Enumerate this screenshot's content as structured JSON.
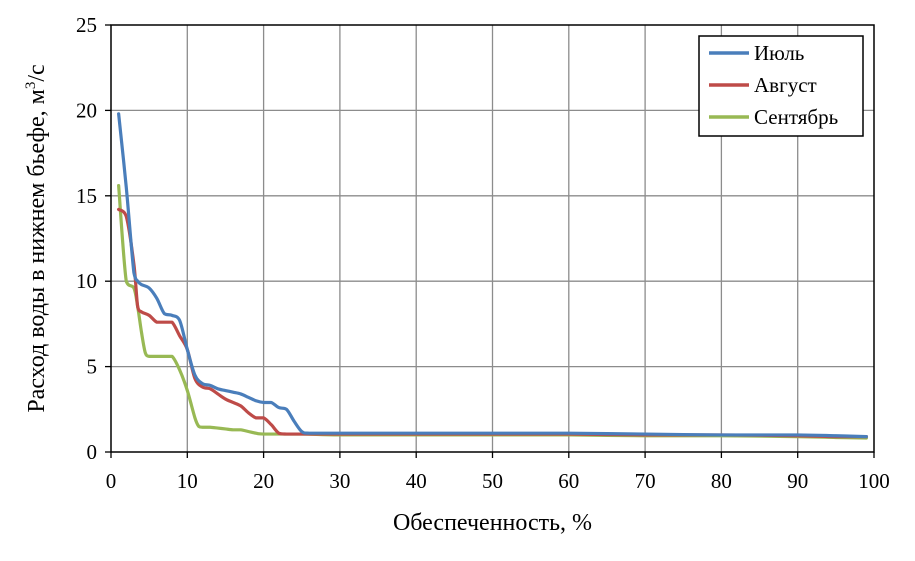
{
  "chart_data": {
    "type": "line",
    "title": "",
    "xlabel": "Обеспеченность, %",
    "ylabel": "Расход воды в нижнем бьефе, м",
    "ylabel_sup": "3",
    "ylabel_tail": "/с",
    "xlim": [
      0,
      100
    ],
    "ylim": [
      0,
      25
    ],
    "x_ticks": [
      0,
      10,
      20,
      30,
      40,
      50,
      60,
      70,
      80,
      90,
      100
    ],
    "y_ticks": [
      0,
      5,
      10,
      15,
      20,
      25
    ],
    "grid": true,
    "legend_position": "top-right",
    "series": [
      {
        "name": "Июль",
        "color": "#4a7ebb",
        "x": [
          1,
          2,
          3,
          3.5,
          4,
          5,
          6,
          7,
          8,
          9,
          10,
          11,
          12,
          13,
          14,
          15,
          16,
          17,
          18,
          19,
          20,
          21,
          22,
          23,
          24,
          25,
          26,
          30,
          40,
          50,
          60,
          70,
          80,
          90,
          95,
          99
        ],
        "y": [
          19.8,
          15.5,
          10.5,
          10.0,
          9.8,
          9.6,
          9.0,
          8.1,
          8.0,
          7.7,
          6.0,
          4.5,
          4.0,
          3.9,
          3.7,
          3.6,
          3.5,
          3.4,
          3.2,
          3.0,
          2.9,
          2.9,
          2.6,
          2.5,
          1.8,
          1.2,
          1.1,
          1.1,
          1.1,
          1.1,
          1.1,
          1.05,
          1.0,
          1.0,
          0.95,
          0.9
        ]
      },
      {
        "name": "Август",
        "color": "#be4b48",
        "x": [
          1,
          2,
          3,
          3.5,
          4,
          5,
          6,
          7,
          8,
          9,
          10,
          11,
          12,
          13,
          14,
          15,
          16,
          17,
          18,
          19,
          20,
          21,
          22,
          23,
          25,
          30,
          40,
          50,
          60,
          70,
          80,
          90,
          95,
          99
        ],
        "y": [
          14.2,
          13.8,
          11.0,
          8.5,
          8.2,
          8.0,
          7.6,
          7.6,
          7.6,
          6.8,
          6.0,
          4.3,
          3.8,
          3.7,
          3.4,
          3.1,
          2.9,
          2.7,
          2.3,
          2.0,
          2.0,
          1.6,
          1.1,
          1.05,
          1.05,
          1.05,
          1.05,
          1.05,
          1.05,
          1.0,
          1.0,
          0.95,
          0.9,
          0.9
        ]
      },
      {
        "name": "Сентябрь",
        "color": "#98b954",
        "x": [
          1,
          2,
          3,
          3.5,
          4,
          4.5,
          5,
          6,
          7,
          8,
          9,
          10,
          11,
          11.5,
          12,
          13,
          14,
          15,
          16,
          17,
          18,
          19,
          20,
          25,
          30,
          40,
          50,
          60,
          70,
          80,
          90,
          95,
          99
        ],
        "y": [
          15.6,
          10.0,
          9.6,
          8.5,
          7.0,
          5.8,
          5.6,
          5.6,
          5.6,
          5.6,
          4.8,
          3.6,
          2.0,
          1.5,
          1.45,
          1.45,
          1.4,
          1.35,
          1.3,
          1.3,
          1.2,
          1.1,
          1.05,
          1.05,
          1.0,
          1.0,
          1.0,
          1.0,
          0.95,
          0.95,
          0.9,
          0.85,
          0.82
        ]
      }
    ]
  }
}
